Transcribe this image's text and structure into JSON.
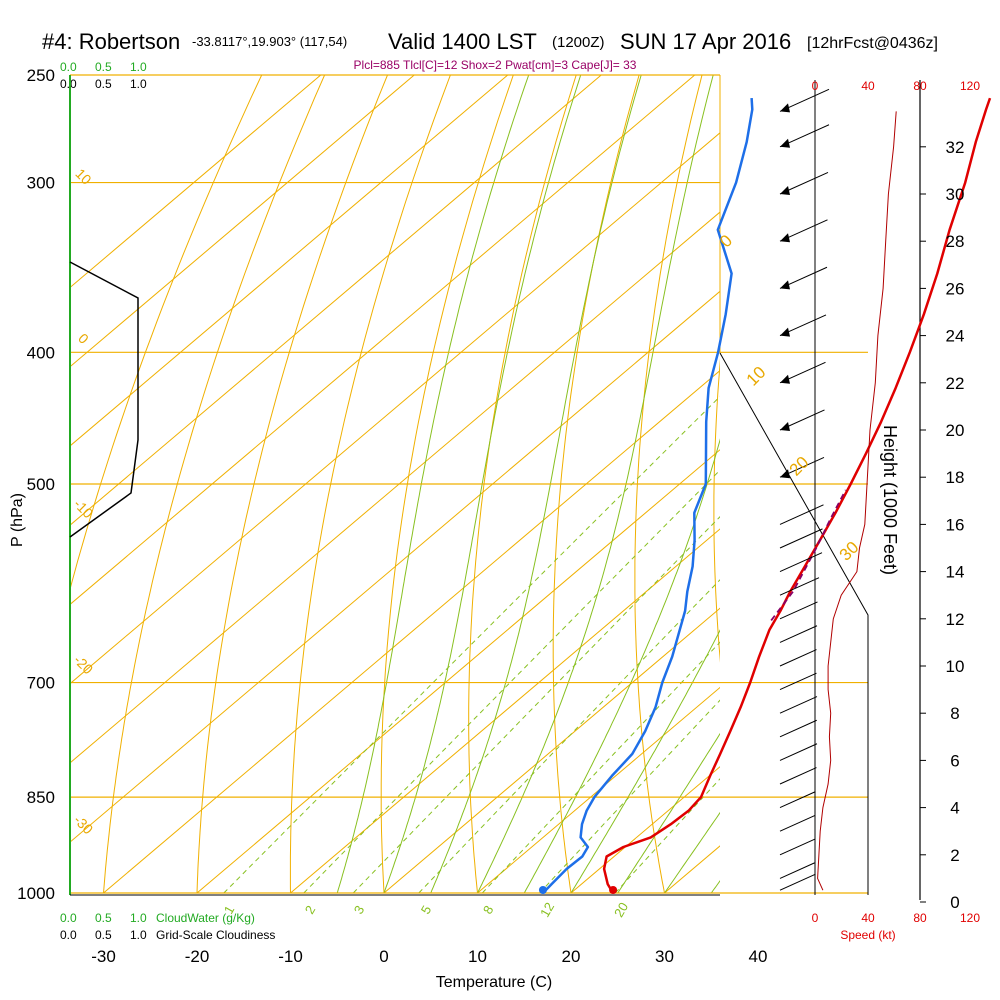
{
  "title": {
    "station": "#4: Robertson",
    "coords": "-33.8117°,19.903° (117,54)",
    "valid": "Valid 1400 LST",
    "utc": "(1200Z)",
    "date": "SUN 17 Apr 2016",
    "forecast": "[12hrFcst@0436z]"
  },
  "indices": "Plcl=885 Tlcl[C]=12 Shox=2 Pwat[cm]=3 Cape[J]= 33",
  "colors": {
    "temperature": "#e00000",
    "dewpoint": "#1e6fe8",
    "parcel": "#880066",
    "isotherm_isobar": "#f0b000",
    "mixing_ratio": "#88c020",
    "cloud_water": "#22aa22",
    "cloudiness": "#000000",
    "wind_speed": "#b00000"
  },
  "chart_data": {
    "type": "skew-t",
    "xlabel": "Temperature (C)",
    "ylabel": "P (hPa)",
    "x_ticks": [
      "-30",
      "-20",
      "-10",
      "0",
      "10",
      "20",
      "30",
      "40"
    ],
    "x_values": [
      -30,
      -20,
      -10,
      0,
      10,
      20,
      30,
      40
    ],
    "p_ticks": [
      "250",
      "300",
      "400",
      "500",
      "700",
      "850",
      "1000"
    ],
    "p_values": [
      250,
      300,
      400,
      500,
      700,
      850,
      1000
    ],
    "height_label": "Height (1000 Feet)",
    "height_ticks": [
      "0",
      "2",
      "4",
      "6",
      "8",
      "10",
      "12",
      "14",
      "16",
      "18",
      "20",
      "22",
      "24",
      "26",
      "28",
      "30",
      "32"
    ],
    "height_values": [
      0,
      2,
      4,
      6,
      8,
      10,
      12,
      14,
      16,
      18,
      20,
      22,
      24,
      26,
      28,
      30,
      32
    ],
    "speed_label": "Speed (kt)",
    "speed_ticks": [
      "0",
      "40",
      "80",
      "120"
    ],
    "cloud_water_label": "CloudWater (g/Kg)",
    "cloudiness_label": "Grid-Scale Cloudiness",
    "cloud_ticks": [
      "0.0",
      "0.5",
      "1.0"
    ],
    "isotherm_labels": [
      "-10",
      "0",
      "10",
      "20",
      "30"
    ],
    "isotherm_values": [
      -10,
      0,
      10,
      20,
      30
    ],
    "adiabat_labels": [
      "10",
      "0",
      "-10",
      "-20",
      "-30"
    ],
    "mixing_ratio_labels": [
      "1",
      "2",
      "3",
      "5",
      "8",
      "12",
      "20"
    ],
    "mixing_ratio_values": [
      1,
      2,
      3,
      5,
      8,
      12,
      20
    ],
    "temperature_profile": {
      "p": [
        1000,
        985,
        960,
        940,
        925,
        910,
        890,
        870,
        850,
        820,
        790,
        760,
        730,
        700,
        670,
        640,
        620,
        600,
        575,
        550,
        525,
        500,
        475,
        450,
        425,
        400,
        375,
        350,
        325,
        300,
        280,
        265,
        260
      ],
      "t": [
        24.5,
        22.8,
        20.5,
        19.2,
        19.8,
        21.5,
        22.0,
        22.2,
        21.8,
        20.1,
        18.4,
        16.6,
        14.7,
        12.6,
        10.3,
        8.0,
        6.8,
        5.4,
        3.8,
        2.1,
        0.3,
        -1.7,
        -3.9,
        -6.3,
        -9.0,
        -12.0,
        -15.3,
        -19.0,
        -23.2,
        -27.5,
        -31.5,
        -34.5,
        -35.5
      ]
    },
    "dewpoint_profile": {
      "p": [
        1000,
        985,
        960,
        940,
        925,
        910,
        890,
        870,
        850,
        820,
        790,
        760,
        730,
        700,
        670,
        640,
        620,
        600,
        575,
        550,
        525,
        500,
        475,
        450,
        425,
        400,
        375,
        350,
        325,
        300,
        280,
        265,
        260
      ],
      "td": [
        17.0,
        16.8,
        16.5,
        16.6,
        16.0,
        14.0,
        12.5,
        11.3,
        10.4,
        9.6,
        9.0,
        7.5,
        5.6,
        3.2,
        1.0,
        -1.6,
        -3.4,
        -5.6,
        -8.2,
        -11.3,
        -14.8,
        -17.2,
        -21.0,
        -25.0,
        -29.0,
        -32.5,
        -36.5,
        -41.0,
        -48.0,
        -52.0,
        -56.0,
        -59.5,
        -61.0
      ]
    },
    "parcel_profile": {
      "p": [
        630,
        600,
        560,
        530,
        505
      ],
      "t": [
        7.0,
        5.7,
        2.9,
        0.5,
        -1.5
      ]
    },
    "wind_speed_profile_kt": {
      "height_kft": [
        0.5,
        1,
        2,
        3,
        4,
        5,
        6,
        7,
        8,
        9,
        10,
        11,
        12,
        13,
        14,
        15,
        16,
        18,
        20,
        22,
        24,
        26,
        28,
        30,
        32,
        33.5
      ],
      "speed": [
        6,
        2,
        3,
        4,
        6,
        10,
        12,
        11,
        12,
        10,
        10,
        12,
        14,
        20,
        32,
        34,
        38,
        40,
        42,
        46,
        48,
        52,
        54,
        56,
        60,
        62
      ]
    }
  }
}
